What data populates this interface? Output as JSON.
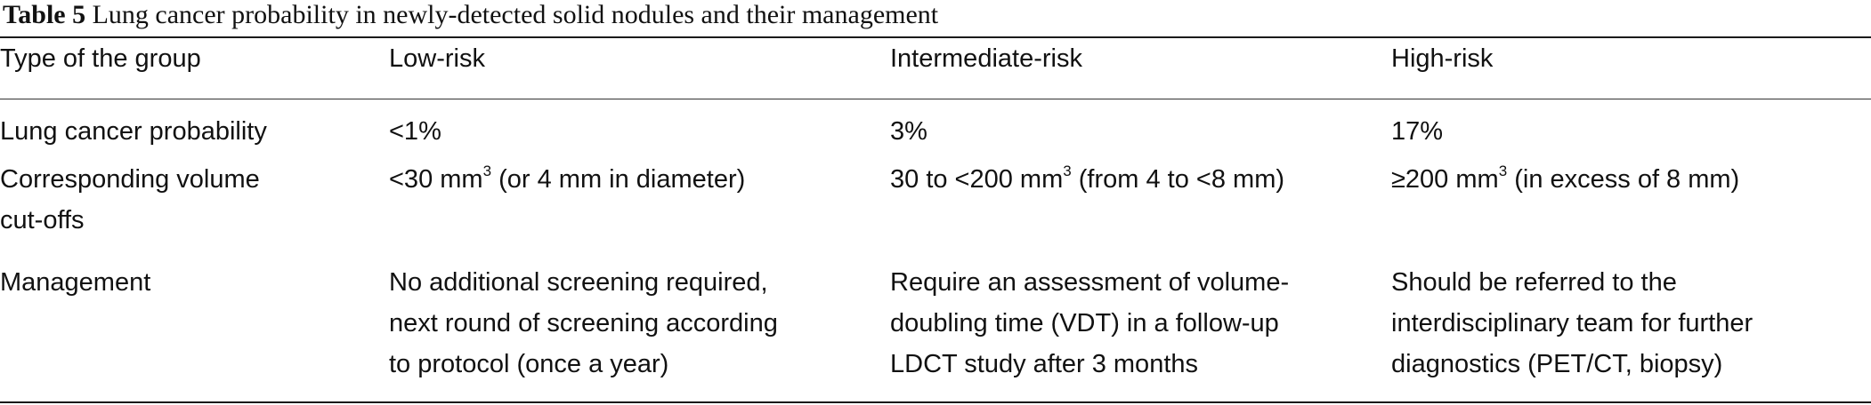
{
  "caption": {
    "label": "Table 5",
    "text": " Lung cancer probability in newly-detected solid nodules and their management"
  },
  "table": {
    "headers": [
      "Type of the group",
      "Low-risk",
      "Intermediate-risk",
      "High-risk"
    ],
    "rows": {
      "probability": {
        "label": "Lung cancer probability",
        "low": "<1%",
        "intermediate": "3%",
        "high": "17%"
      },
      "volume": {
        "label_line1": "Corresponding volume",
        "label_line2": "cut-offs",
        "low_pre": "<30 mm",
        "low_sup": "3",
        "low_post": " (or 4 mm in diameter)",
        "intermediate_pre": "30 to <200 mm",
        "intermediate_sup": "3",
        "intermediate_post": " (from 4 to <8 mm)",
        "high_pre": "≥200 mm",
        "high_sup": "3",
        "high_post": " (in excess of 8 mm)"
      },
      "management": {
        "label": "Management",
        "low": [
          "No additional screening required,",
          "next round of screening according",
          "to protocol (once a year)"
        ],
        "intermediate": [
          "Require an assessment of volume-",
          "doubling time (VDT) in a follow-up",
          "LDCT study after 3 months"
        ],
        "high": [
          "Should be referred to the",
          "interdisciplinary team for further",
          "diagnostics (PET/CT, biopsy)"
        ]
      }
    }
  }
}
